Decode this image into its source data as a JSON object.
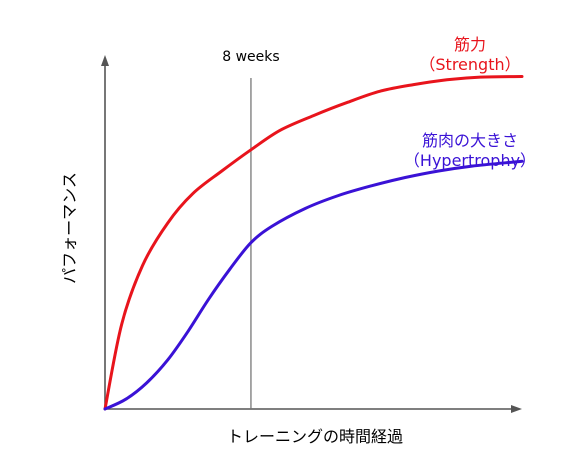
{
  "chart_data": {
    "type": "line",
    "title": "",
    "xlabel": "トレーニングの時間経過",
    "ylabel": "パフォーマンス",
    "xlim": [
      0,
      10
    ],
    "ylim": [
      0,
      10
    ],
    "grid": false,
    "reference_line": {
      "x": 3.5,
      "label": "8 weeks"
    },
    "series": [
      {
        "name": "筋力",
        "name_en": "（Strength）",
        "color": "#e8141c",
        "x": [
          0,
          0.4,
          0.9,
          1.5,
          2.1,
          2.8,
          3.5,
          4.2,
          5.0,
          5.8,
          6.6,
          7.4,
          8.2,
          9.0,
          10.0
        ],
        "y": [
          0,
          2.6,
          4.4,
          5.7,
          6.6,
          7.3,
          7.95,
          8.55,
          9.0,
          9.4,
          9.75,
          9.95,
          10.1,
          10.18,
          10.2
        ]
      },
      {
        "name": "筋肉の大きさ",
        "name_en": "（Hypertrophy）",
        "color": "#3a12d6",
        "x": [
          0,
          0.5,
          1.0,
          1.5,
          2.0,
          2.5,
          3.0,
          3.5,
          4.0,
          4.8,
          5.6,
          6.4,
          7.2,
          8.0,
          8.8,
          10.0
        ],
        "y": [
          0,
          0.3,
          0.8,
          1.5,
          2.4,
          3.4,
          4.3,
          5.1,
          5.6,
          6.15,
          6.55,
          6.85,
          7.1,
          7.3,
          7.45,
          7.6
        ]
      }
    ]
  }
}
